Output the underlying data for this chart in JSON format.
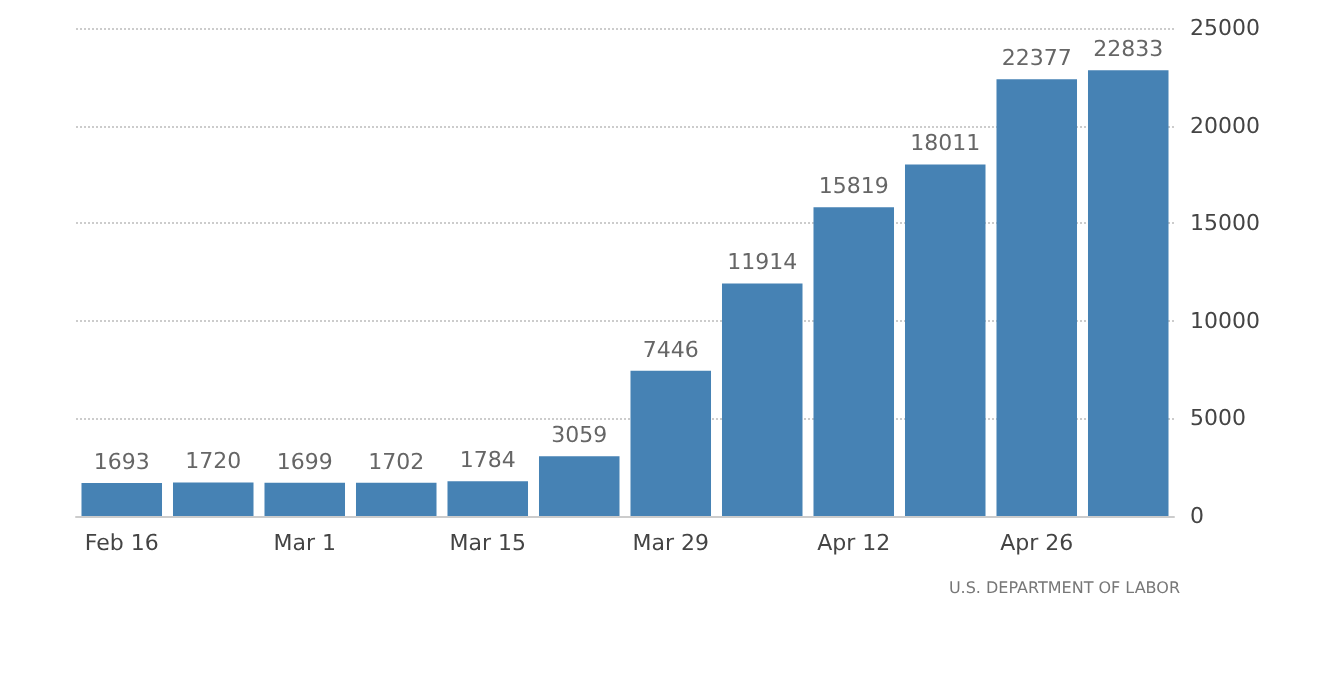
{
  "chart_data": {
    "type": "bar",
    "categories": [
      "Feb 16",
      null,
      "Mar 1",
      null,
      "Mar 15",
      null,
      "Mar 29",
      null,
      "Apr 12",
      null,
      "Apr 26",
      null
    ],
    "values": [
      1693,
      1720,
      1699,
      1702,
      1784,
      3059,
      7446,
      11914,
      15819,
      18011,
      22377,
      22833
    ],
    "color": "#4682b4",
    "ylim": [
      0,
      25000
    ],
    "yticks": [
      0,
      5000,
      10000,
      15000,
      20000,
      25000
    ],
    "grid": "y",
    "data_labels": true,
    "annotations": [
      "U.S. DEPARTMENT OF LABOR"
    ]
  }
}
